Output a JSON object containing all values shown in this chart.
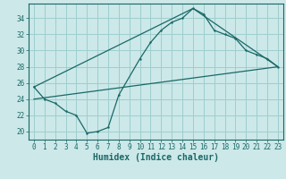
{
  "xlabel": "Humidex (Indice chaleur)",
  "background_color": "#cce8e8",
  "grid_color": "#9ecece",
  "line_color": "#1a6868",
  "xlim": [
    -0.5,
    23.5
  ],
  "ylim": [
    19.0,
    35.8
  ],
  "yticks": [
    20,
    22,
    24,
    26,
    28,
    30,
    32,
    34
  ],
  "xticks": [
    0,
    1,
    2,
    3,
    4,
    5,
    6,
    7,
    8,
    9,
    10,
    11,
    12,
    13,
    14,
    15,
    16,
    17,
    18,
    19,
    20,
    21,
    22,
    23
  ],
  "line1_x": [
    0,
    1,
    2,
    3,
    4,
    5,
    6,
    7,
    8,
    10,
    11,
    12,
    13,
    14,
    15,
    16,
    17,
    18,
    19,
    20,
    21,
    22,
    23
  ],
  "line1_y": [
    25.5,
    24.0,
    23.5,
    22.5,
    22.0,
    19.8,
    20.0,
    20.5,
    24.5,
    29.0,
    31.0,
    32.5,
    33.5,
    34.0,
    35.2,
    34.5,
    32.5,
    32.0,
    31.5,
    30.0,
    29.5,
    29.0,
    28.0
  ],
  "line2_x": [
    0,
    23
  ],
  "line2_y": [
    24.0,
    28.0
  ],
  "line3_x": [
    0,
    15,
    23
  ],
  "line3_y": [
    25.5,
    35.2,
    28.0
  ],
  "tick_fontsize": 5.5,
  "xlabel_fontsize": 7.0
}
